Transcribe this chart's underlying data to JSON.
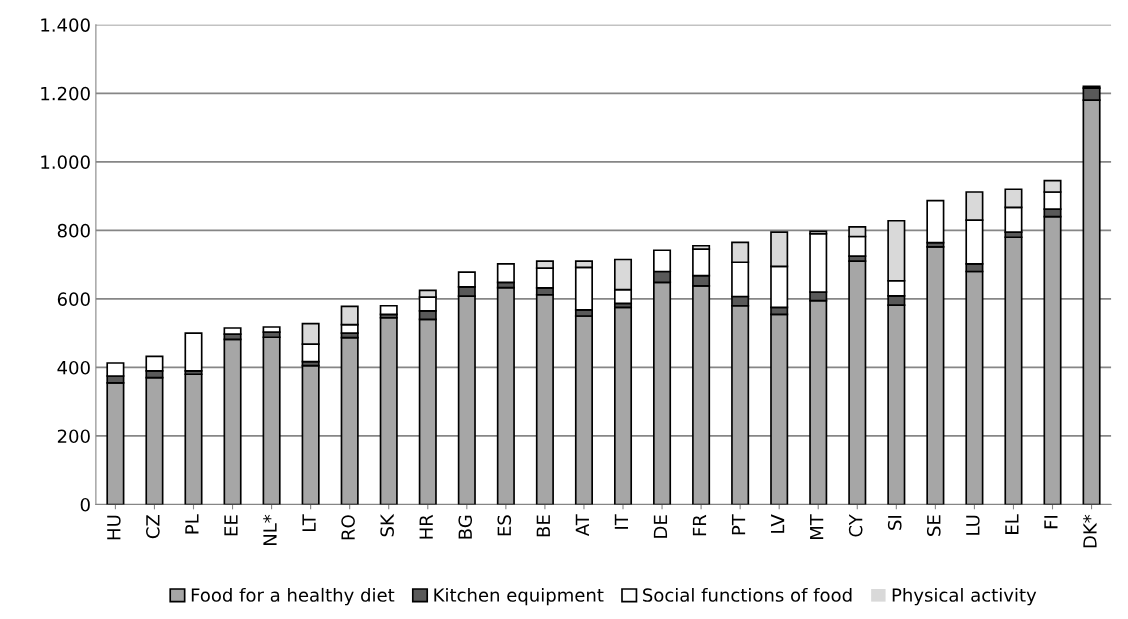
{
  "chart_data": {
    "type": "bar",
    "stacked": true,
    "categories": [
      "HU",
      "CZ",
      "PL",
      "EE",
      "NL*",
      "LT",
      "RO",
      "SK",
      "HR",
      "BG",
      "ES",
      "BE",
      "AT",
      "IT",
      "DE",
      "FR",
      "PT",
      "LV",
      "MT",
      "CY",
      "SI",
      "SE",
      "LU",
      "EL",
      "FI",
      "DK*"
    ],
    "series": [
      {
        "name": "Food for a healthy diet",
        "color": "#a6a6a6",
        "values": [
          355,
          370,
          380,
          482,
          488,
          405,
          487,
          545,
          540,
          608,
          633,
          612,
          550,
          575,
          648,
          638,
          580,
          555,
          595,
          710,
          582,
          752,
          680,
          780,
          840,
          1180
        ]
      },
      {
        "name": "Kitchen equipment",
        "color": "#595959",
        "values": [
          20,
          20,
          10,
          15,
          15,
          12,
          13,
          10,
          25,
          27,
          15,
          20,
          18,
          12,
          32,
          30,
          27,
          20,
          25,
          15,
          27,
          12,
          22,
          15,
          22,
          35
        ]
      },
      {
        "name": "Social functions of food",
        "color": "#ffffff",
        "values": [
          38,
          42,
          110,
          18,
          15,
          51,
          25,
          25,
          40,
          43,
          54,
          58,
          124,
          40,
          62,
          77,
          100,
          120,
          170,
          57,
          44,
          123,
          128,
          72,
          50,
          5
        ]
      },
      {
        "name": "Physical activity",
        "color": "#d9d9d9",
        "values": [
          0,
          0,
          0,
          0,
          0,
          60,
          53,
          0,
          20,
          0,
          0,
          20,
          18,
          88,
          0,
          10,
          58,
          100,
          7,
          28,
          175,
          0,
          82,
          53,
          33,
          0
        ]
      }
    ],
    "ylim": [
      0,
      1400
    ],
    "yticks": [
      {
        "value": 0,
        "label": "0"
      },
      {
        "value": 200,
        "label": "200"
      },
      {
        "value": 400,
        "label": "400"
      },
      {
        "value": 600,
        "label": "600"
      },
      {
        "value": 800,
        "label": "800"
      },
      {
        "value": 1000,
        "label": "1.000"
      },
      {
        "value": 1200,
        "label": "1.200"
      },
      {
        "value": 1400,
        "label": "1.400"
      }
    ],
    "grid": "y",
    "legend": "bottom"
  }
}
